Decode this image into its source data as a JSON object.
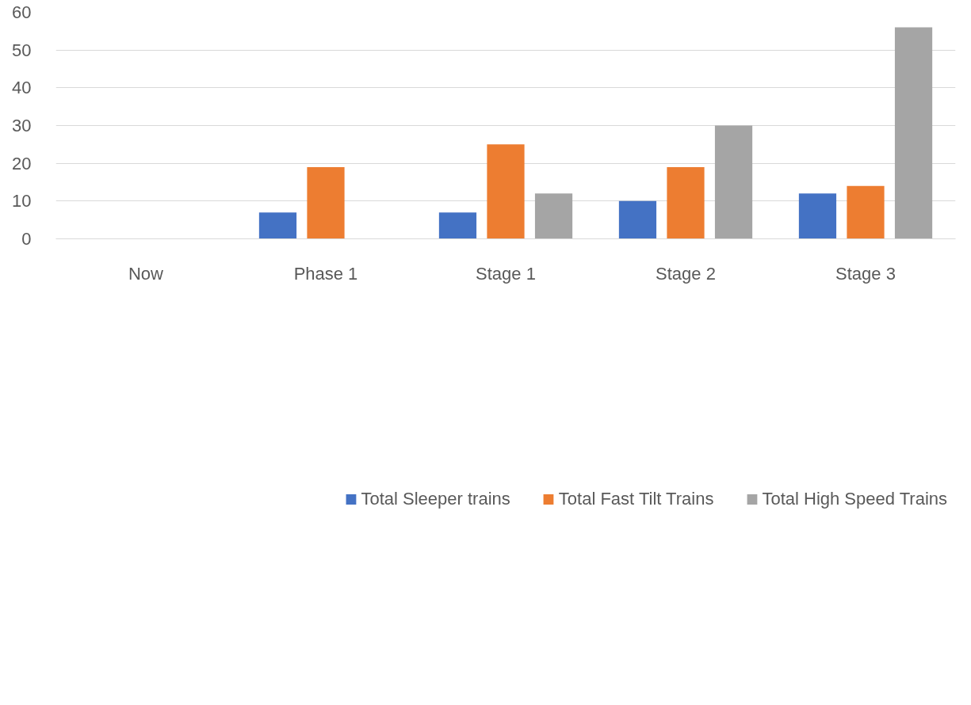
{
  "chart_data": {
    "type": "bar",
    "categories": [
      "Now",
      "Phase 1",
      "Stage 1",
      "Stage 2",
      "Stage 3"
    ],
    "series": [
      {
        "name": "Total Sleeper trains",
        "color": "#4472c4",
        "values": [
          0,
          7,
          7,
          10,
          12
        ]
      },
      {
        "name": "Total Fast Tilt Trains",
        "color": "#ed7d31",
        "values": [
          0,
          19,
          25,
          19,
          14
        ]
      },
      {
        "name": "Total High Speed Trains",
        "color": "#a5a5a5",
        "values": [
          0,
          0,
          12,
          30,
          56
        ]
      }
    ],
    "ylim": [
      0,
      60
    ],
    "yticks": [
      0,
      10,
      20,
      30,
      40,
      50,
      60
    ],
    "grid": "y",
    "legend": "bottom"
  }
}
